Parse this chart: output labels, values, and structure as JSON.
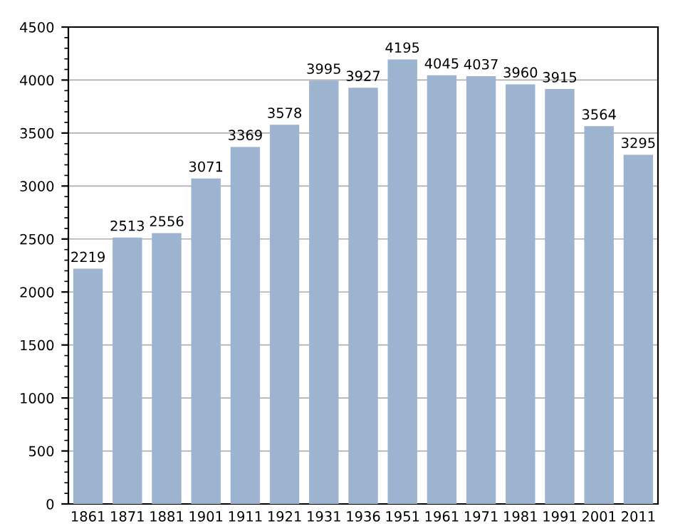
{
  "chart_data": {
    "type": "bar",
    "categories": [
      "1861",
      "1871",
      "1881",
      "1901",
      "1911",
      "1921",
      "1931",
      "1936",
      "1951",
      "1961",
      "1971",
      "1981",
      "1991",
      "2001",
      "2011"
    ],
    "values": [
      2219,
      2513,
      2556,
      3071,
      3369,
      3578,
      3995,
      3927,
      4195,
      4045,
      4037,
      3960,
      3915,
      3564,
      3295
    ],
    "color": "#9cb4cf",
    "ylim": [
      0,
      4500
    ],
    "yticks": [
      0,
      500,
      1000,
      1500,
      2000,
      2500,
      3000,
      3500,
      4000,
      4500
    ],
    "grid": "y",
    "data_labels": true
  }
}
